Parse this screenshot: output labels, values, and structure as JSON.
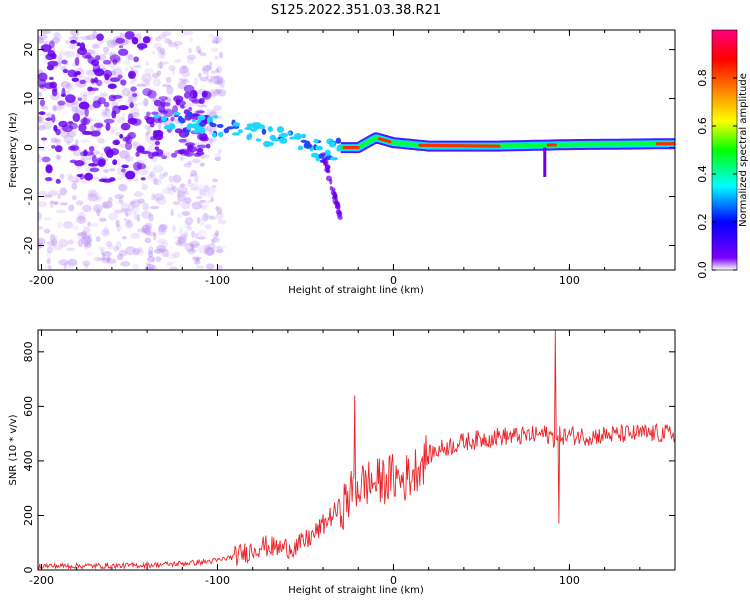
{
  "title": "S125.2022.351.03.38.R21",
  "chart_data": [
    {
      "type": "heatmap",
      "name": "spectrogram",
      "xlabel": "Height of straight line (km)",
      "ylabel": "Frequency (Hz)",
      "xlim": [
        -202,
        160
      ],
      "ylim": [
        -25,
        24
      ],
      "xticks": [
        -200,
        -100,
        0,
        100
      ],
      "yticks": [
        20,
        10,
        0,
        -10,
        -20
      ],
      "colorbar": {
        "label": "Normalized spectral amplitude",
        "range": [
          0,
          1
        ],
        "ticks": [
          0.0,
          0.2,
          0.4,
          0.6,
          0.8
        ],
        "colors": [
          "#ffffff",
          "#7b00ff",
          "#0000ff",
          "#00ffff",
          "#00ff00",
          "#ffff00",
          "#ff8000",
          "#ff0000",
          "#ff0080"
        ]
      },
      "ridge": {
        "points": [
          [
            -135,
            5
          ],
          [
            -110,
            5
          ],
          [
            -95,
            4
          ],
          [
            -80,
            3
          ],
          [
            -65,
            2
          ],
          [
            -50,
            0.5
          ],
          [
            -40,
            -1
          ],
          [
            -30,
            0
          ],
          [
            -20,
            0
          ],
          [
            -10,
            2
          ],
          [
            0,
            1
          ],
          [
            20,
            0.3
          ],
          [
            60,
            0.3
          ],
          [
            100,
            0.6
          ],
          [
            160,
            0.8
          ]
        ],
        "branch": [
          [
            -40,
            -1
          ],
          [
            -35,
            -8
          ],
          [
            -30,
            -14
          ]
        ]
      }
    },
    {
      "type": "line",
      "name": "snr",
      "xlabel": "Height of straight line (km)",
      "ylabel": "SNR (10 * v/v)",
      "xlim": [
        -202,
        160
      ],
      "ylim": [
        0,
        880
      ],
      "xticks": [
        -200,
        -100,
        0,
        100
      ],
      "yticks": [
        0,
        200,
        400,
        600,
        800
      ],
      "color": "#e8252b",
      "series": [
        {
          "x": [
            -202,
            -180,
            -160,
            -140,
            -125,
            -110,
            -100,
            -90,
            -80,
            -75,
            -65,
            -55,
            -45,
            -35,
            -28,
            -22,
            -18,
            -15,
            -10,
            -5,
            0,
            5,
            10,
            15,
            20,
            25,
            30,
            40,
            50,
            60,
            70,
            80,
            85,
            90,
            93,
            95,
            97,
            100,
            110,
            120,
            140,
            160
          ],
          "y": [
            15,
            15,
            15,
            18,
            22,
            28,
            35,
            50,
            75,
            90,
            80,
            85,
            130,
            200,
            240,
            300,
            310,
            320,
            320,
            330,
            340,
            330,
            350,
            390,
            420,
            440,
            450,
            470,
            480,
            490,
            490,
            495,
            500,
            490,
            470,
            500,
            490,
            495,
            490,
            495,
            500,
            500
          ]
        }
      ],
      "spikes": [
        [
          -22,
          640
        ],
        [
          92,
          880
        ],
        [
          94,
          170
        ]
      ]
    }
  ]
}
